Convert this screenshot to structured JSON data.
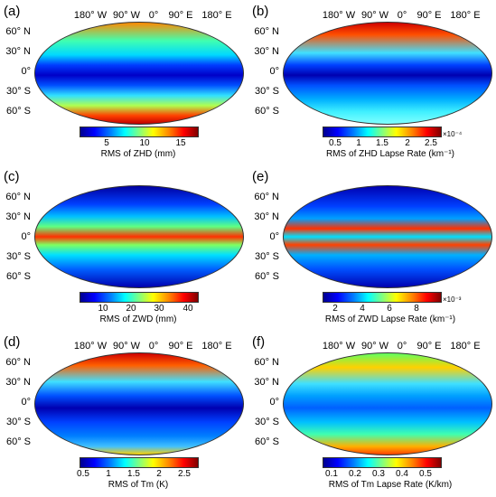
{
  "panels": [
    {
      "label": "(a)",
      "title": "RMS of ZHD (mm)",
      "ticks": [
        "5",
        "10",
        "15"
      ],
      "expo": "",
      "top_lon": [],
      "lat": [
        "60° N",
        "30° N",
        "0°",
        "30° S",
        "60° S"
      ]
    },
    {
      "label": "(b)",
      "title": "RMS of ZHD Lapse Rate (km⁻¹)",
      "ticks": [
        "0.5",
        "1",
        "1.5",
        "2",
        "2.5"
      ],
      "expo": "×10⁻⁴",
      "top_lon": [
        "180° W",
        "90° W",
        "0°",
        "90° E",
        "180° E"
      ],
      "lat": [
        "60° N",
        "30° N",
        "0°",
        "30° S",
        "60° S"
      ]
    },
    {
      "label": "(c)",
      "title": "RMS of ZWD (mm)",
      "ticks": [
        "10",
        "20",
        "30",
        "40"
      ],
      "expo": "",
      "top_lon": [],
      "lat": [
        "60° N",
        "30° N",
        "0°",
        "30° S",
        "60° S"
      ]
    },
    {
      "label": "(e)",
      "title": "RMS of ZWD Lapse Rate (km⁻¹)",
      "ticks": [
        "2",
        "4",
        "6",
        "8"
      ],
      "expo": "×10⁻³",
      "top_lon": [],
      "lat": [
        "60° N",
        "30° N",
        "0°",
        "30° S",
        "60° S"
      ]
    },
    {
      "label": "(d)",
      "title": "RMS of Tm (K)",
      "ticks": [
        "0.5",
        "1",
        "1.5",
        "2",
        "2.5"
      ],
      "expo": "",
      "top_lon": [
        "180° W",
        "90° W",
        "0°",
        "90° E",
        "180° E"
      ],
      "lat": [
        "60° N",
        "30° N",
        "0°",
        "30° S",
        "60° S"
      ]
    },
    {
      "label": "(f)",
      "title": "RMS of Tm Lapse Rate (K/km)",
      "ticks": [
        "0.1",
        "0.2",
        "0.3",
        "0.4",
        "0.5"
      ],
      "expo": "",
      "top_lon": [
        "180° W",
        "90° W",
        "0°",
        "90° E",
        "180° E"
      ],
      "lat": [
        "60° N",
        "30° N",
        "0°",
        "30° S",
        "60° S"
      ]
    }
  ],
  "top_lon_a": [
    "180° W",
    "90° W",
    "0°",
    "90° E",
    "180° E"
  ]
}
